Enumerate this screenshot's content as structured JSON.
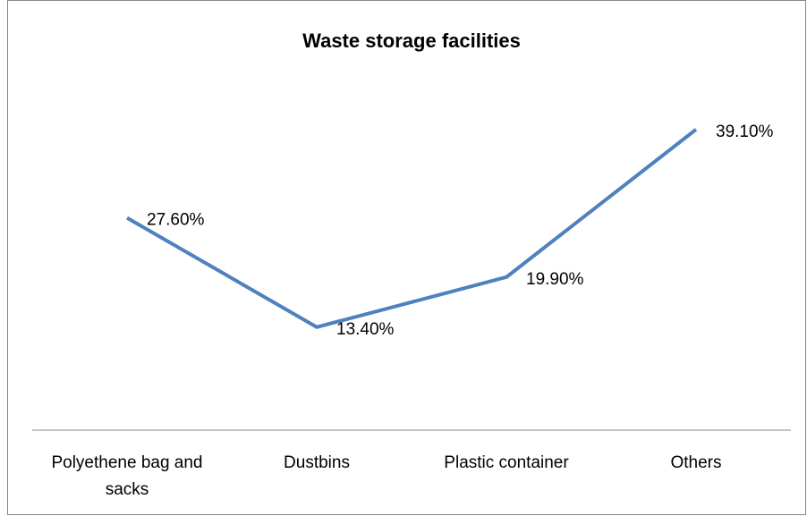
{
  "chart_data": {
    "type": "line",
    "title": "Waste storage facilities",
    "categories": [
      "Polyethene bag and sacks",
      "Dustbins",
      "Plastic container",
      "Others"
    ],
    "values": [
      27.6,
      13.4,
      19.9,
      39.1
    ],
    "value_labels": [
      "27.60%",
      "13.40%",
      "19.90%",
      "39.10%"
    ],
    "color": "#4f81bd",
    "ylim": [
      0,
      45
    ]
  }
}
